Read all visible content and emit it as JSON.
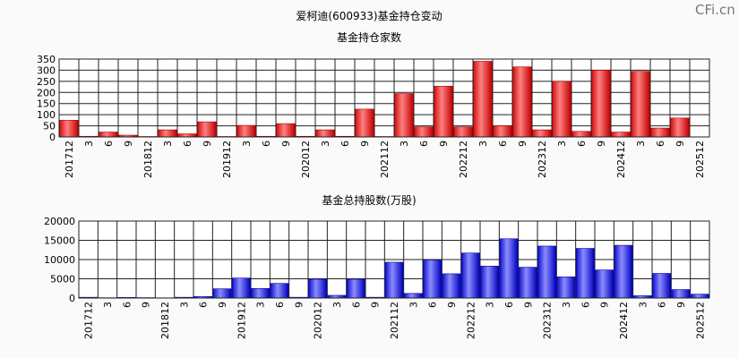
{
  "main_title": "爱柯迪(600933)基金持仓变动",
  "watermark": "CFi.cn",
  "colors": {
    "plot_bg": "#ffffff",
    "grid": "#222222",
    "red_bar_edge": "#b00000",
    "red_bar_light": "#ff8080",
    "red_bar_dark": "#d01010",
    "blue_bar_edge": "#0000a0",
    "blue_bar_light": "#8c8cff",
    "blue_bar_dark": "#1010d0"
  },
  "chart_data": [
    {
      "type": "bar",
      "title": "基金持仓家数",
      "ylim": [
        0,
        350
      ],
      "yticks": [
        0,
        50,
        100,
        150,
        200,
        250,
        300,
        350
      ],
      "grid": true,
      "categories": [
        "201712",
        "3",
        "6",
        "9",
        "201812",
        "3",
        "6",
        "9",
        "201912",
        "3",
        "6",
        "9",
        "202012",
        "3",
        "6",
        "9",
        "202112",
        "3",
        "6",
        "9",
        "202212",
        "3",
        "6",
        "9",
        "202312",
        "3",
        "6",
        "9",
        "202412",
        "3",
        "6",
        "9",
        "202512"
      ],
      "values": [
        75,
        3,
        22,
        8,
        2,
        32,
        14,
        68,
        2,
        52,
        3,
        60,
        3,
        32,
        3,
        125,
        2,
        195,
        45,
        228,
        45,
        340,
        50,
        315,
        32,
        250,
        25,
        300,
        22,
        295,
        40,
        85,
        0
      ]
    },
    {
      "type": "bar",
      "title": "基金总持股数(万股)",
      "ylim": [
        0,
        20000
      ],
      "yticks": [
        0,
        5000,
        10000,
        15000,
        20000
      ],
      "grid": true,
      "categories": [
        "201712",
        "3",
        "6",
        "9",
        "201812",
        "3",
        "6",
        "9",
        "201912",
        "3",
        "6",
        "9",
        "202012",
        "3",
        "6",
        "9",
        "202112",
        "3",
        "6",
        "9",
        "202212",
        "3",
        "6",
        "9",
        "202312",
        "3",
        "6",
        "9",
        "202412",
        "3",
        "6",
        "9",
        "202512"
      ],
      "values": [
        200,
        80,
        150,
        100,
        60,
        200,
        400,
        2400,
        5200,
        2500,
        3800,
        200,
        4900,
        700,
        4900,
        200,
        9300,
        1200,
        9900,
        6300,
        11700,
        8300,
        15400,
        8000,
        13500,
        5500,
        12900,
        7300,
        13700,
        600,
        6400,
        2200,
        1000
      ]
    }
  ]
}
